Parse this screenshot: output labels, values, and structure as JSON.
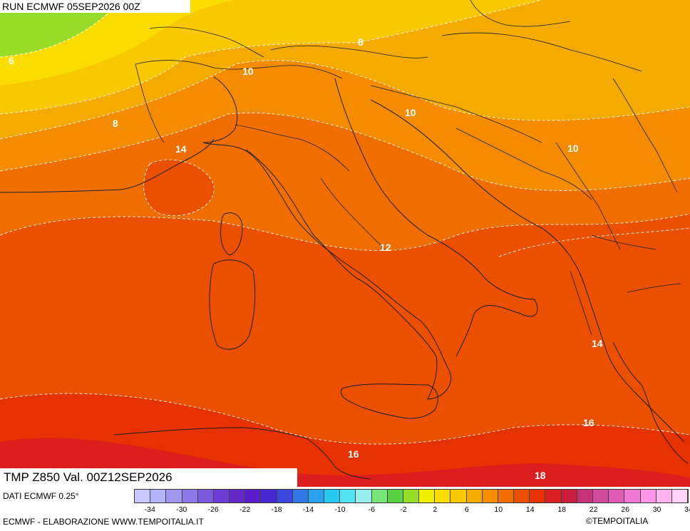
{
  "header": {
    "run": "RUN ECMWF 05SEP2026 00Z"
  },
  "map": {
    "variable": "TMP Z850 Val. 00Z12SEP2026",
    "contour_labels": [
      "6",
      "8",
      "10",
      "8",
      "10",
      "14",
      "10",
      "12",
      "14",
      "16",
      "16",
      "18"
    ]
  },
  "footer": {
    "source": "DATI ECMWF 0.25°",
    "credit": "ECMWF - ELABORAZIONE WWW.TEMPOITALIA.IT",
    "copyright": "©TEMPOITALIA"
  },
  "colorbar": {
    "ticks": [
      "-34",
      "-30",
      "-26",
      "-22",
      "-18",
      "-14",
      "-10",
      "-6",
      "-2",
      "2",
      "6",
      "10",
      "14",
      "18",
      "22",
      "26",
      "30",
      "34"
    ],
    "colors": [
      "#c8c8ff",
      "#b4b4fa",
      "#a096f0",
      "#8c78e6",
      "#7a5ade",
      "#6e3cd6",
      "#6428c8",
      "#5a1ec8",
      "#4628d2",
      "#3c46dc",
      "#3278e6",
      "#2aa0ee",
      "#2ac8f4",
      "#50e6f4",
      "#96f0f0",
      "#78e678",
      "#5ad246",
      "#96dc28",
      "#f0f000",
      "#fadc00",
      "#fac800",
      "#f5aa00",
      "#f58c00",
      "#f06e00",
      "#ea5000",
      "#e63200",
      "#dc1e1e",
      "#c81e3c",
      "#c83278",
      "#d24ba0",
      "#e15ab4",
      "#f078d2",
      "#fa96e6",
      "#ffb4f0",
      "#ffd2fa"
    ]
  }
}
